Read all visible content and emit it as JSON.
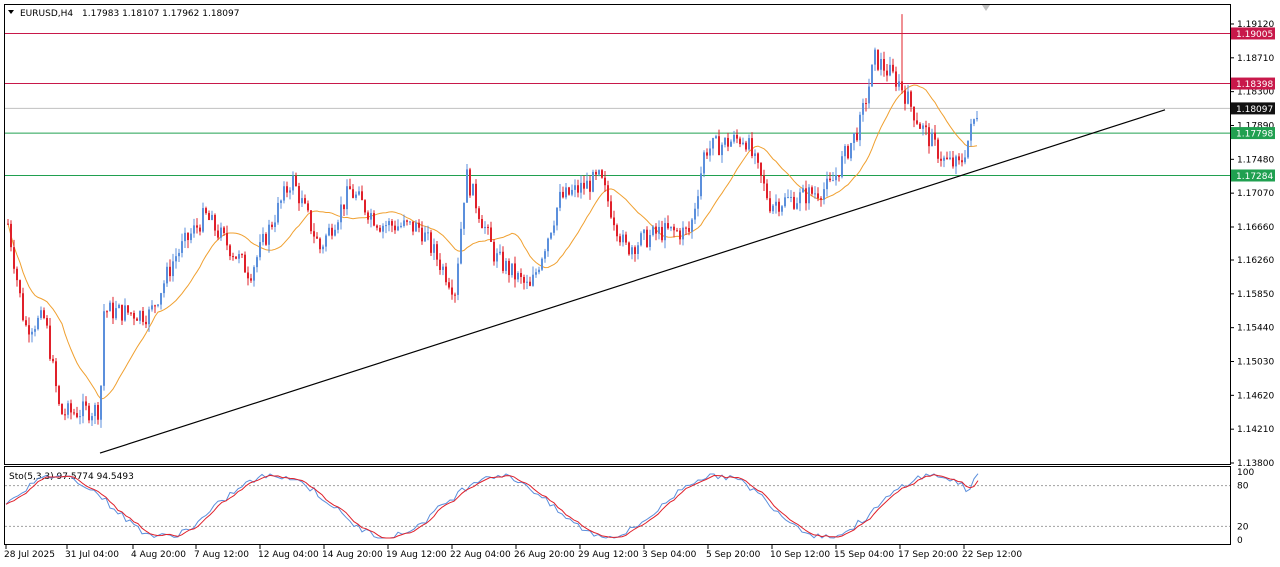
{
  "header": {
    "symbol": "EURUSD,H4",
    "ohlc": "1.17983 1.18107 1.17962 1.18097"
  },
  "stochastic": {
    "label": "Sto(5,3,3) 97.5774 94.5493",
    "levels_text": [
      "100",
      "80",
      "20",
      "0"
    ]
  },
  "colors": {
    "bull": "#5b8fdc",
    "bear": "#e0202a",
    "ma": "#f0a030",
    "resistance": "#c8184a",
    "support": "#20a050",
    "current_price": "#111111",
    "grid_level": "#c0c0c0",
    "trendline": "#000000",
    "stoch_main": "#5b8fdc",
    "stoch_signal": "#e0202a"
  },
  "price_axis": {
    "ticks": [
      "1.19120",
      "1.18710",
      "1.18300",
      "1.17890",
      "1.17480",
      "1.17070",
      "1.16660",
      "1.16260",
      "1.15850",
      "1.15440",
      "1.15030",
      "1.14620",
      "1.14210",
      "1.13800"
    ]
  },
  "level_tags": [
    {
      "text": "1.19005",
      "value": 1.19005,
      "kind": "resistance"
    },
    {
      "text": "1.18398",
      "value": 1.18398,
      "kind": "resistance"
    },
    {
      "text": "1.18097",
      "value": 1.18097,
      "kind": "current_price"
    },
    {
      "text": "1.17798",
      "value": 1.17798,
      "kind": "support"
    },
    {
      "text": "1.17284",
      "value": 1.17284,
      "kind": "support"
    }
  ],
  "time_axis": {
    "labels": [
      "28 Jul 2025",
      "31 Jul 04:00",
      "4 Aug 20:00",
      "7 Aug 12:00",
      "12 Aug 04:00",
      "14 Aug 20:00",
      "19 Aug 12:00",
      "22 Aug 04:00",
      "26 Aug 20:00",
      "29 Aug 12:00",
      "3 Sep 04:00",
      "5 Sep 20:00",
      "10 Sep 12:00",
      "15 Sep 04:00",
      "17 Sep 20:00",
      "22 Sep 12:00"
    ]
  },
  "chart_data": {
    "type": "candlestick",
    "symbol": "EURUSD",
    "timeframe": "H4",
    "ylim": [
      1.138,
      1.1935
    ],
    "indicators": [
      "moving average",
      "stochastic (5,3,3)"
    ],
    "trendline": {
      "from": {
        "x": "31 Jul 2025",
        "y": 1.1392
      },
      "to": {
        "x": "23 Sep 2025",
        "y": 1.1808
      }
    },
    "horizontal_levels": [
      1.19005,
      1.18398,
      1.17798,
      1.17284
    ],
    "last_close": 1.18097,
    "stochastic_levels": [
      80,
      20
    ]
  }
}
